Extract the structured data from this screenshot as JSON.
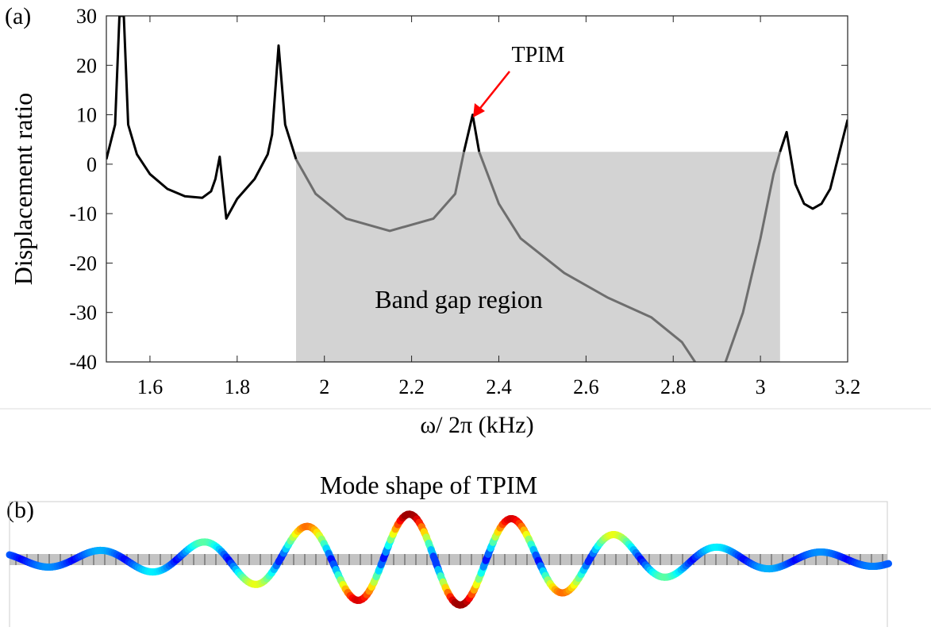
{
  "chart_data": [
    {
      "type": "line",
      "panel_label": "(a)",
      "xlabel": "ω/ 2π (kHz)",
      "ylabel": "Displacement ratio",
      "x": [
        1.5,
        1.52,
        1.53,
        1.54,
        1.55,
        1.57,
        1.6,
        1.64,
        1.68,
        1.72,
        1.74,
        1.75,
        1.76,
        1.775,
        1.8,
        1.84,
        1.87,
        1.88,
        1.895,
        1.91,
        1.935,
        1.98,
        2.05,
        2.15,
        2.25,
        2.3,
        2.32,
        2.34,
        2.355,
        2.4,
        2.45,
        2.55,
        2.65,
        2.75,
        2.82,
        2.85,
        2.885,
        2.92,
        2.96,
        3.0,
        3.03,
        3.045,
        3.06,
        3.08,
        3.1,
        3.12,
        3.14,
        3.16,
        3.18,
        3.2
      ],
      "series": [
        {
          "color": "#000000",
          "values": [
            1,
            8,
            30,
            30,
            8,
            2,
            -2,
            -5,
            -6.5,
            -6.8,
            -5.5,
            -3,
            1.5,
            -11,
            -7,
            -3,
            2,
            6,
            24,
            8,
            1,
            null,
            null,
            null,
            null,
            null,
            2.5,
            10,
            2.5,
            null,
            null,
            null,
            null,
            null,
            null,
            null,
            null,
            null,
            null,
            null,
            null,
            2.5,
            6.5,
            -4,
            -8,
            -9,
            -8,
            -5,
            2,
            9
          ]
        },
        {
          "color": "#6e6e6e",
          "values": [
            null,
            null,
            null,
            null,
            null,
            null,
            null,
            null,
            null,
            null,
            null,
            null,
            null,
            null,
            null,
            null,
            null,
            null,
            null,
            null,
            1,
            -6,
            -11,
            -13.5,
            -11,
            -6,
            2.5,
            null,
            2.5,
            -8,
            -15,
            -22,
            -27,
            -31,
            -36,
            -40,
            null,
            -40,
            -30,
            -15,
            -2,
            2.5,
            null,
            null,
            null,
            null,
            null,
            null,
            null,
            null
          ]
        }
      ],
      "band_gap_x": [
        1.935,
        3.045
      ],
      "band_gap_top": 2.5,
      "band_gap_color": "#d3d3d3",
      "band_gap_label": "Band gap region",
      "annotation": "TPIM",
      "annotation_color": "#ff0000",
      "xlim": [
        1.5,
        3.2
      ],
      "xticks": [
        1.6,
        1.8,
        2,
        2.2,
        2.4,
        2.6,
        2.8,
        3,
        3.2
      ],
      "ylim": [
        -40,
        30
      ],
      "yticks": [
        -40,
        -30,
        -20,
        -10,
        0,
        10,
        20,
        30
      ]
    },
    {
      "type": "mode-shape",
      "panel_label": "(b)",
      "title": "Mode shape of TPIM"
    }
  ]
}
